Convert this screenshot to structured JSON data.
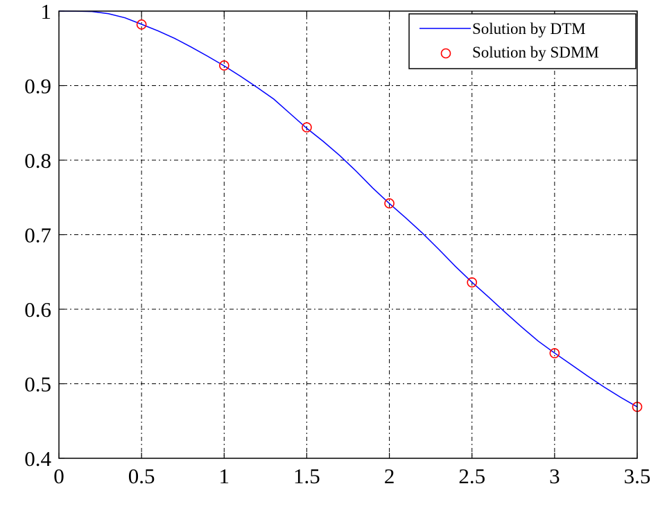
{
  "chart_data": {
    "type": "line",
    "title": "",
    "xlabel": "",
    "ylabel": "",
    "xlim": [
      0,
      3.5
    ],
    "ylim": [
      0.4,
      1.0
    ],
    "x_ticks": [
      0,
      0.5,
      1,
      1.5,
      2,
      2.5,
      3,
      3.5
    ],
    "x_tick_labels": [
      "0",
      "0.5",
      "1",
      "1.5",
      "2",
      "2.5",
      "3",
      "3.5"
    ],
    "y_ticks": [
      0.4,
      0.5,
      0.6,
      0.7,
      0.8,
      0.9,
      1.0
    ],
    "y_tick_labels": [
      "0.4",
      "0.5",
      "0.6",
      "0.7",
      "0.8",
      "0.9",
      "1"
    ],
    "grid": true,
    "legend_position": "top-right",
    "series": [
      {
        "name": "Solution by DTM",
        "style": "line",
        "color": "#0000ff",
        "x": [
          0,
          0.1,
          0.2,
          0.3,
          0.4,
          0.5,
          0.6,
          0.7,
          0.8,
          0.9,
          1.0,
          1.1,
          1.2,
          1.3,
          1.4,
          1.5,
          1.6,
          1.7,
          1.8,
          1.9,
          2.0,
          2.1,
          2.2,
          2.3,
          2.4,
          2.5,
          2.6,
          2.7,
          2.8,
          2.9,
          3.0,
          3.1,
          3.2,
          3.3,
          3.4,
          3.5
        ],
        "y": [
          1.0,
          0.9999,
          0.9994,
          0.9965,
          0.991,
          0.9823,
          0.9734,
          0.9634,
          0.9518,
          0.9394,
          0.9265,
          0.9125,
          0.8976,
          0.882,
          0.8623,
          0.8428,
          0.8251,
          0.8061,
          0.785,
          0.7625,
          0.7418,
          0.7224,
          0.7021,
          0.6801,
          0.6574,
          0.6362,
          0.6165,
          0.596,
          0.5762,
          0.5574,
          0.5412,
          0.5259,
          0.5103,
          0.4955,
          0.4818,
          0.469
        ]
      },
      {
        "name": "Solution by SDMM",
        "style": "marker",
        "marker": "circle",
        "color": "#ff0000",
        "x": [
          0.5,
          1.0,
          1.5,
          2.0,
          2.5,
          3.0,
          3.5
        ],
        "y": [
          0.982,
          0.927,
          0.844,
          0.742,
          0.636,
          0.541,
          0.469
        ]
      }
    ]
  }
}
